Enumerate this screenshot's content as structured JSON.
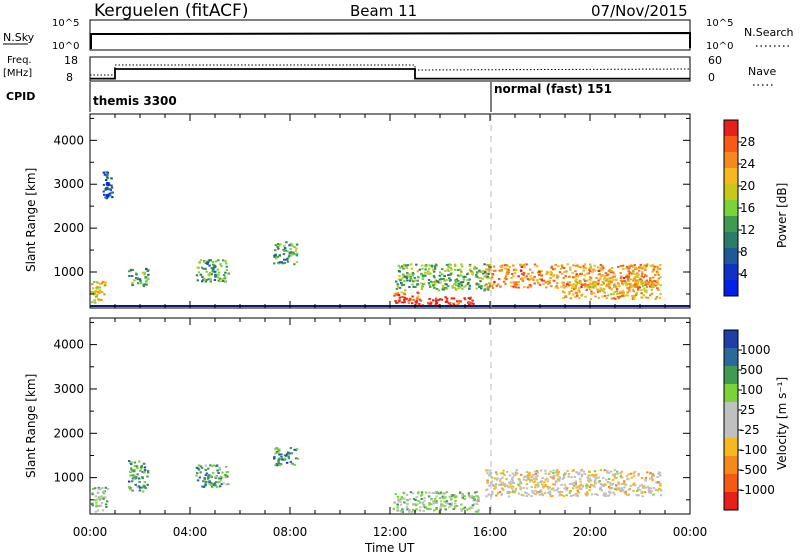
{
  "header": {
    "station": "Kerguelen (fitACF)",
    "beam": "Beam 11",
    "date": "07/Nov/2015"
  },
  "strip": {
    "nsky_label": "N.Sky",
    "nsky_ticks": [
      "10^5",
      "10^0"
    ],
    "nsearch_label": "N.Search",
    "nsearch_ticks": [
      "10^5",
      "10^0"
    ],
    "freq_label": "Freq.",
    "freq_unit": "[MHz]",
    "freq_ticks": [
      "18",
      "8"
    ],
    "nave_label": "Nave",
    "nave_ticks": [
      "60",
      "0"
    ],
    "cpid_label": "CPID",
    "cpid_segments": [
      {
        "label": "themis 3300",
        "start": 0
      },
      {
        "label": "normal (fast) 151",
        "start": 16
      }
    ],
    "freq_steps": [
      [
        0,
        9
      ],
      [
        1,
        13
      ],
      [
        13,
        9
      ],
      [
        24,
        9
      ]
    ]
  },
  "chart_data": [
    {
      "type": "heatmap",
      "name": "power",
      "ylabel": "Slant Range [km]",
      "yticks": [
        "4000",
        "3000",
        "2000",
        "1000"
      ],
      "ylim": [
        180,
        4600
      ],
      "xlim": [
        0,
        24
      ],
      "colorbar": {
        "label": "Power [dB]",
        "ticks": [
          "28",
          "24",
          "20",
          "16",
          "12",
          "8",
          "4"
        ],
        "colors": [
          "#e8201c",
          "#f75a14",
          "#f58a1c",
          "#f5b81f",
          "#c8c81a",
          "#7ad339",
          "#3f9a52",
          "#2a7d66",
          "#1e5a9a",
          "#1030c8",
          "#0022e8"
        ]
      },
      "blobs": [
        {
          "x0": 13.0,
          "x1": 15.4,
          "r0": 250,
          "r1": 450,
          "level": 0.95
        },
        {
          "x0": 12.1,
          "x1": 13.1,
          "r0": 300,
          "r1": 560,
          "level": 0.85
        },
        {
          "x0": 15.8,
          "x1": 22.8,
          "r0": 650,
          "r1": 1200,
          "level": 0.75
        },
        {
          "x0": 18.8,
          "x1": 22.8,
          "r0": 400,
          "r1": 800,
          "level": 0.7
        },
        {
          "x0": 12.2,
          "x1": 16.0,
          "r0": 600,
          "r1": 1200,
          "level": 0.45
        },
        {
          "x0": 0.0,
          "x1": 0.6,
          "r0": 300,
          "r1": 800,
          "level": 0.65
        },
        {
          "x0": 1.5,
          "x1": 2.3,
          "r0": 700,
          "r1": 1100,
          "level": 0.4
        },
        {
          "x0": 4.2,
          "x1": 5.5,
          "r0": 800,
          "r1": 1300,
          "level": 0.4
        },
        {
          "x0": 7.3,
          "x1": 8.3,
          "r0": 1200,
          "r1": 1700,
          "level": 0.4
        },
        {
          "x0": 0.5,
          "x1": 0.9,
          "r0": 2700,
          "r1": 3300,
          "level": 0.2
        }
      ]
    },
    {
      "type": "heatmap",
      "name": "velocity",
      "ylabel": "Slant Range [km]",
      "yticks": [
        "4000",
        "3000",
        "2000",
        "1000"
      ],
      "xlabel": "Time UT",
      "xticks": [
        "00:00",
        "04:00",
        "08:00",
        "12:00",
        "16:00",
        "20:00",
        "00:00"
      ],
      "ylim": [
        180,
        4600
      ],
      "xlim": [
        0,
        24
      ],
      "colorbar": {
        "label": "Velocity [m s⁻¹]",
        "ticks": [
          "1000",
          "500",
          "100",
          "25",
          "-25",
          "-100",
          "-500",
          "-1000"
        ],
        "colors": [
          "#1e3eaa",
          "#2a6a9a",
          "#3f9a52",
          "#7ad339",
          "#c0c0c0",
          "#c0c0c0",
          "#f5b81f",
          "#f58a1c",
          "#f55a14",
          "#e8201c"
        ]
      },
      "blobs": [
        {
          "x0": 12.1,
          "x1": 15.5,
          "r0": 250,
          "r1": 700,
          "level": 0.6
        },
        {
          "x0": 15.8,
          "x1": 22.8,
          "r0": 600,
          "r1": 1200,
          "level": 0.45
        },
        {
          "x0": 0.0,
          "x1": 0.7,
          "r0": 250,
          "r1": 800,
          "level": 0.6
        },
        {
          "x0": 1.5,
          "x1": 2.3,
          "r0": 700,
          "r1": 1400,
          "level": 0.75
        },
        {
          "x0": 4.2,
          "x1": 5.5,
          "r0": 800,
          "r1": 1300,
          "level": 0.72
        },
        {
          "x0": 7.3,
          "x1": 8.3,
          "r0": 1300,
          "r1": 1700,
          "level": 0.8
        }
      ]
    }
  ]
}
